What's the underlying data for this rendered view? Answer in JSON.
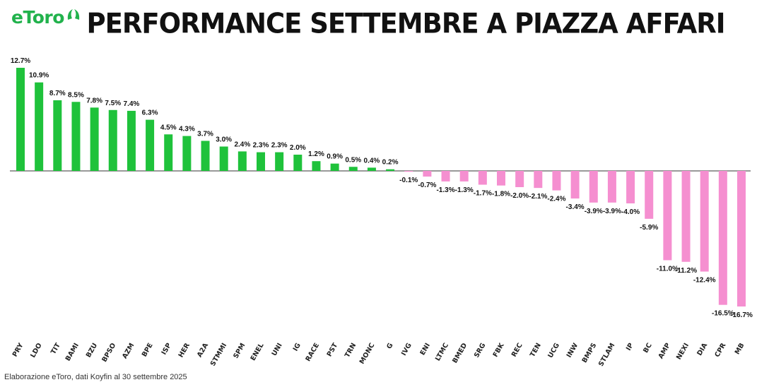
{
  "brand": {
    "logo_text": "eToro"
  },
  "colors": {
    "positive": "#1fc23b",
    "negative": "#f58fd0",
    "axis": "#333333"
  },
  "footer": "Elaborazione eToro, dati Koyfin al 30 settembre 2025",
  "chart_data": {
    "type": "bar",
    "title": "PERFORMANCE SETTEMBRE A PIAZZA AFFARI",
    "xlabel": "",
    "ylabel": "",
    "categories": [
      "PRY",
      "LDO",
      "TIT",
      "BAMI",
      "BZU",
      "BPSO",
      "AZM",
      "BPE",
      "ISP",
      "HER",
      "A2A",
      "STMMI",
      "SPM",
      "ENEL",
      "UNI",
      "IG",
      "RACE",
      "PST",
      "TRN",
      "MONC",
      "G",
      "IVG",
      "ENI",
      "LTMC",
      "BMED",
      "SRG",
      "FBK",
      "REC",
      "TEN",
      "UCG",
      "INW",
      "BMPS",
      "STLAM",
      "IP",
      "BC",
      "AMP",
      "NEXI",
      "DIA",
      "CPR",
      "MB"
    ],
    "values": [
      12.7,
      10.9,
      8.7,
      8.5,
      7.8,
      7.5,
      7.4,
      6.3,
      4.5,
      4.3,
      3.7,
      3.0,
      2.4,
      2.3,
      2.3,
      2.0,
      1.2,
      0.9,
      0.5,
      0.4,
      0.2,
      -0.1,
      -0.7,
      -1.3,
      -1.3,
      -1.7,
      -1.8,
      -2.0,
      -2.1,
      -2.4,
      -3.4,
      -3.9,
      -3.9,
      -4.0,
      -5.9,
      -11.0,
      -11.2,
      -12.4,
      -16.5,
      -16.7
    ],
    "labels": [
      "12.7%",
      "10.9%",
      "8.7%",
      "8.5%",
      "7.8%",
      "7.5%",
      "7.4%",
      "6.3%",
      "4.5%",
      "4.3%",
      "3.7%",
      "3.0%",
      "2.4%",
      "2.3%",
      "2.3%",
      "2.0%",
      "1.2%",
      "0.9%",
      "0.5%",
      "0.4%",
      "0.2%",
      "-0.1%",
      "-0.7%",
      "-1.3%",
      "-1.3%",
      "-1.7%",
      "-1.8%",
      "-2.0%",
      "-2.1%",
      "-2.4%",
      "-3.4%",
      "-3.9%",
      "-3.9%",
      "-4.0%",
      "-5.9%",
      "-11.0%",
      "-11.2%",
      "-12.4%",
      "-16.5%",
      "-16.7%"
    ],
    "ylim": [
      -16.7,
      12.7
    ],
    "grid": false,
    "legend": "none"
  }
}
